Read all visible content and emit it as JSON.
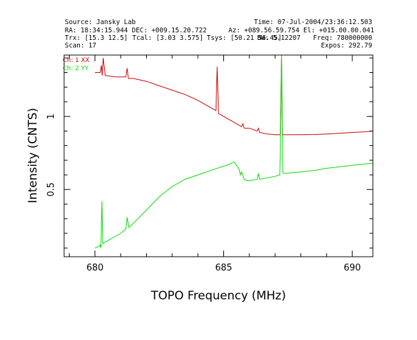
{
  "header": {
    "source": "Source: Jansky Lab",
    "time": "Time: 07-Jul-2004/23:36:12.503",
    "radec": "RA: 18:34:15.944 DEC: +009.15.20.722",
    "azel": "Az: +089.56.59.754 El: +015.00.00.041",
    "trx": "Trx: [15.3 12.5]",
    "tcal": "Tcal: [3.03 3.575]",
    "tsys": "Tsys: [50.21 56.45]",
    "bw": "BW: 5.12207",
    "freq": "Freq: 780000000",
    "scan": "Scan: 17",
    "expos": "Expos: 292.79"
  },
  "chart_data": {
    "type": "line",
    "xlabel": "TOPO Frequency (MHz)",
    "ylabel": "Intensity (CNTS)",
    "xlim": [
      678.8,
      690.8
    ],
    "ylim": [
      0.04,
      1.42
    ],
    "xticks": [
      680,
      685,
      690
    ],
    "xtick_labels": [
      "680",
      "685",
      "690"
    ],
    "yticks": [
      0.5,
      1
    ],
    "ytick_labels": [
      "0.5",
      "1"
    ],
    "legend": [
      "Ch: 1 XX",
      "Ch: 2 YY"
    ],
    "legend_position": "top-left",
    "series": [
      {
        "name": "Ch: 1 XX",
        "color": "#cc0000",
        "x": [
          680.0,
          680.2,
          680.25,
          680.28,
          680.32,
          680.4,
          680.8,
          681.2,
          681.25,
          681.3,
          681.5,
          682.0,
          682.5,
          683.0,
          683.5,
          684.0,
          684.5,
          684.7,
          684.75,
          684.8,
          685.0,
          685.5,
          685.7,
          685.75,
          685.8,
          686.0,
          686.3,
          686.35,
          686.4,
          686.7,
          687.0,
          687.2,
          687.22,
          687.25,
          687.28,
          687.3,
          688.0,
          688.5,
          689.0,
          689.5,
          690.0,
          690.5,
          690.8
        ],
        "y": [
          1.3,
          1.3,
          1.35,
          1.28,
          1.4,
          1.28,
          1.27,
          1.27,
          1.33,
          1.26,
          1.26,
          1.24,
          1.21,
          1.18,
          1.15,
          1.11,
          1.06,
          1.04,
          1.34,
          1.02,
          1.0,
          0.95,
          0.93,
          0.95,
          0.92,
          0.92,
          0.9,
          0.92,
          0.89,
          0.88,
          0.875,
          0.875,
          1.05,
          1.42,
          0.88,
          0.875,
          0.875,
          0.876,
          0.88,
          0.885,
          0.89,
          0.895,
          0.9
        ]
      },
      {
        "name": "Ch: 2 YY",
        "color": "#00dd00",
        "x": [
          680.0,
          680.15,
          680.2,
          680.23,
          680.27,
          680.3,
          680.5,
          681.0,
          681.2,
          681.25,
          681.32,
          681.5,
          682.0,
          682.5,
          683.0,
          683.5,
          684.0,
          684.5,
          685.0,
          685.2,
          685.4,
          685.6,
          685.65,
          685.7,
          685.8,
          685.9,
          686.0,
          686.3,
          686.35,
          686.4,
          687.0,
          687.18,
          687.2,
          687.25,
          687.3,
          687.32,
          688.0,
          688.5,
          689.0,
          689.5,
          690.0,
          690.5,
          690.8
        ],
        "y": [
          0.1,
          0.11,
          0.12,
          0.1,
          0.42,
          0.13,
          0.15,
          0.2,
          0.23,
          0.31,
          0.24,
          0.27,
          0.36,
          0.45,
          0.52,
          0.57,
          0.6,
          0.63,
          0.66,
          0.67,
          0.69,
          0.64,
          0.6,
          0.62,
          0.57,
          0.56,
          0.56,
          0.57,
          0.61,
          0.57,
          0.59,
          0.6,
          0.75,
          1.42,
          0.62,
          0.61,
          0.62,
          0.63,
          0.645,
          0.655,
          0.665,
          0.675,
          0.68
        ]
      }
    ]
  }
}
